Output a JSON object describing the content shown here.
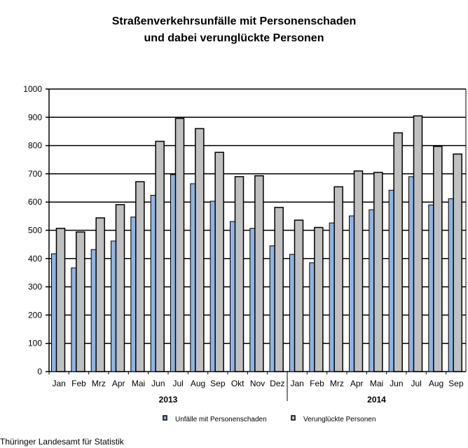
{
  "chart_data": {
    "type": "bar",
    "title": [
      "Straßenverkehrsunfälle mit Personenschaden",
      "und dabei verunglückte Personen"
    ],
    "categories": [
      "Jan",
      "Feb",
      "Mrz",
      "Apr",
      "Mai",
      "Jun",
      "Jul",
      "Aug",
      "Sep",
      "Okt",
      "Nov",
      "Dez",
      "Jan",
      "Feb",
      "Mrz",
      "Apr",
      "Mai",
      "Jun",
      "Jul",
      "Aug",
      "Sep"
    ],
    "groups": [
      {
        "label": "2013",
        "count": 12
      },
      {
        "label": "2014",
        "count": 9
      }
    ],
    "series": [
      {
        "name": "Unfälle mit Personenschaden",
        "color": "#8EB4E3",
        "values": [
          417,
          367,
          432,
          462,
          547,
          624,
          697,
          665,
          603,
          531,
          507,
          445,
          415,
          385,
          526,
          551,
          573,
          642,
          690,
          590,
          612
        ]
      },
      {
        "name": "Verunglückte Personen",
        "color": "#C0C0C0",
        "values": [
          507,
          494,
          544,
          591,
          672,
          815,
          896,
          860,
          776,
          690,
          693,
          581,
          536,
          510,
          654,
          710,
          705,
          845,
          905,
          797,
          770
        ]
      }
    ],
    "ylim": [
      0,
      1000
    ],
    "yticks": [
      0,
      100,
      200,
      300,
      400,
      500,
      600,
      700,
      800,
      900,
      1000
    ],
    "grid": true,
    "legend": "bottom",
    "xlabel": "",
    "ylabel": ""
  },
  "footer": "Thüringer Landesamt für Statistik"
}
